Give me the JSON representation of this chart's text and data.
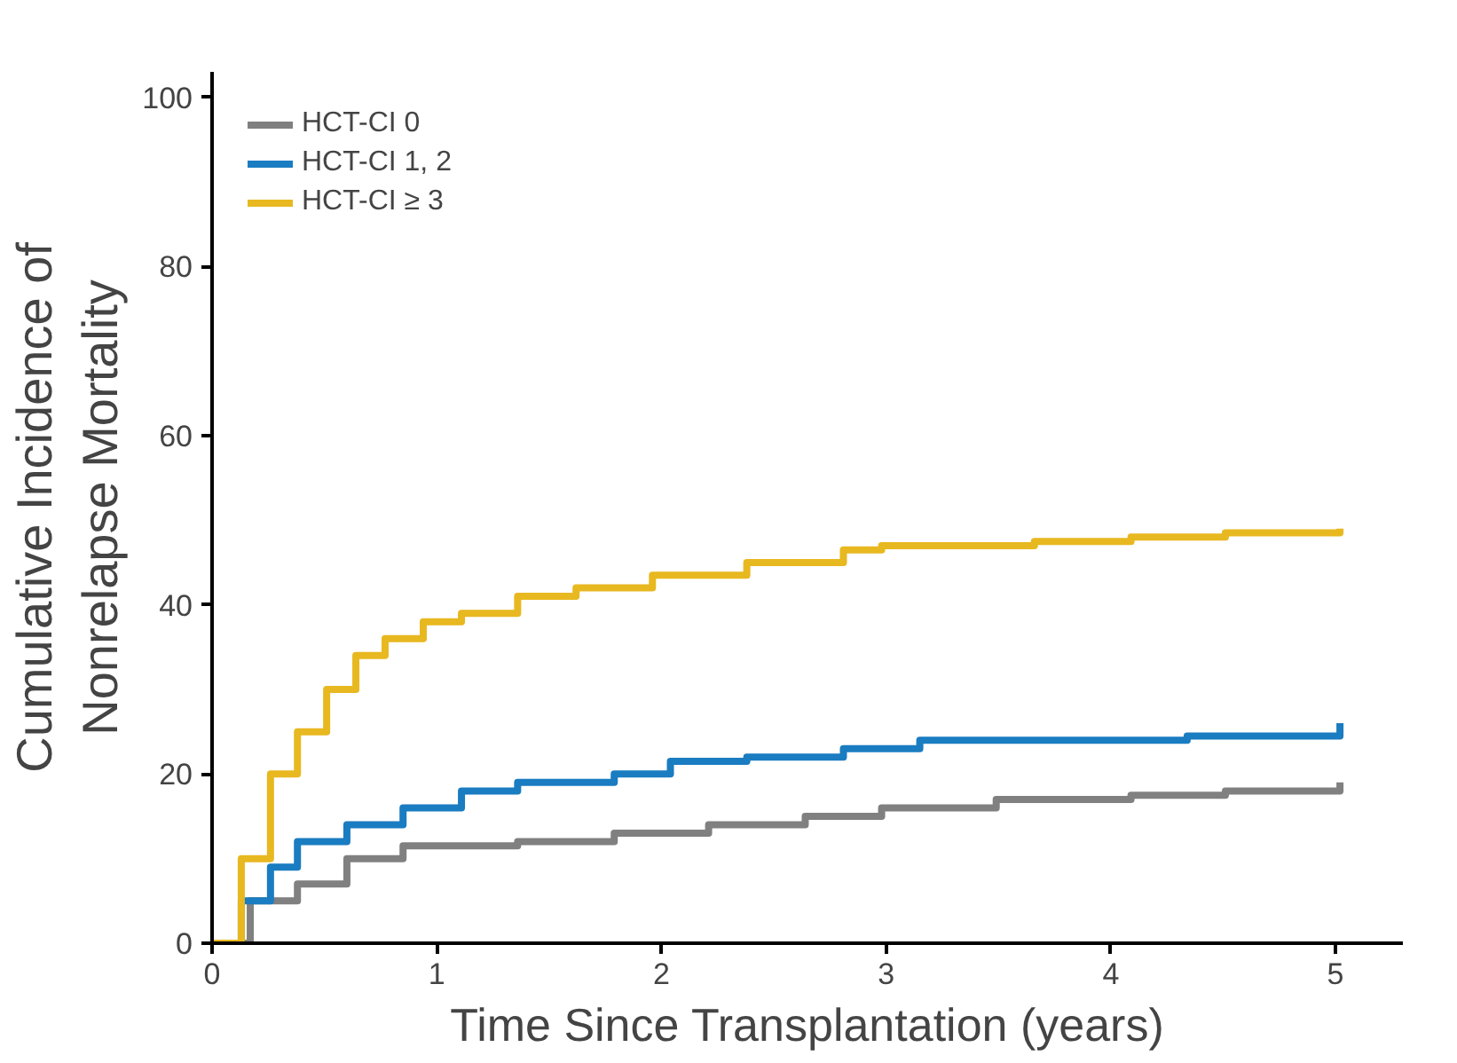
{
  "chart_data": {
    "type": "step",
    "xlabel": "Time Since Transplantation (years)",
    "ylabel": "Cumulative Incidence of\nNonrelapse Mortality",
    "xlim": [
      0,
      5.3
    ],
    "ylim": [
      0,
      103
    ],
    "xticks": [
      0,
      1,
      2,
      3,
      4,
      5
    ],
    "yticks": [
      0,
      20,
      40,
      60,
      80,
      100
    ],
    "grid": false,
    "legend": "top left",
    "series": [
      {
        "name": "HCT-CI 0",
        "color": "#808080",
        "x": [
          0,
          0.17,
          0.38,
          0.6,
          0.85,
          1.36,
          1.79,
          2.21,
          2.64,
          2.98,
          3.49,
          4.09,
          4.51,
          5.02
        ],
        "values": [
          0,
          5,
          7,
          10,
          11.5,
          12,
          13,
          14,
          15,
          16,
          17,
          17.5,
          18,
          19
        ]
      },
      {
        "name": "HCT-CI 1, 2",
        "color": "#1a7cc1",
        "x": [
          0,
          0.13,
          0.26,
          0.38,
          0.6,
          0.85,
          1.11,
          1.36,
          1.79,
          2.04,
          2.38,
          2.81,
          3.15,
          3.66,
          4.34,
          5.02
        ],
        "values": [
          0,
          5,
          9,
          12,
          14,
          16,
          18,
          19,
          20,
          21.5,
          22,
          23,
          24,
          24,
          24.5,
          26
        ]
      },
      {
        "name": "HCT-CI ≥ 3",
        "color": "#e8b820",
        "x": [
          0,
          0.13,
          0.26,
          0.38,
          0.51,
          0.64,
          0.77,
          0.94,
          1.11,
          1.36,
          1.62,
          1.96,
          2.38,
          2.81,
          2.98,
          3.66,
          4.09,
          4.51,
          5.02
        ],
        "values": [
          0,
          10,
          20,
          25,
          30,
          34,
          36,
          38,
          39,
          41,
          42,
          43.5,
          45,
          46.5,
          47,
          47.5,
          48,
          48.5,
          49
        ]
      }
    ]
  }
}
